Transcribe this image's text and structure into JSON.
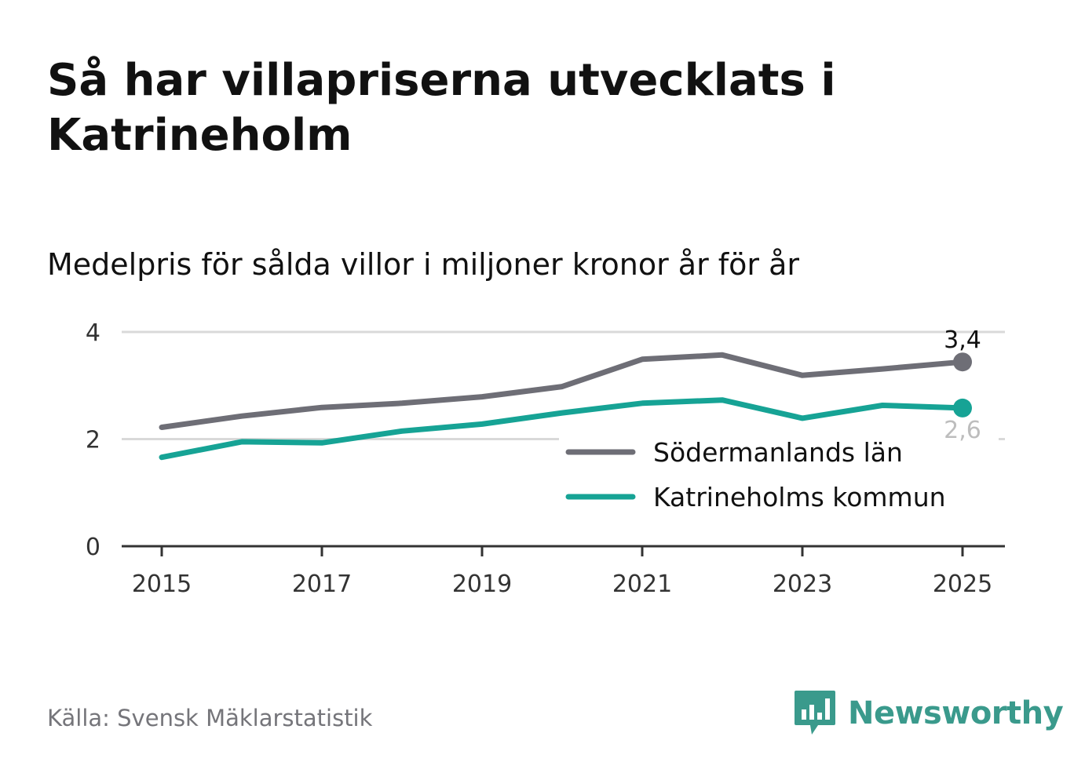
{
  "title": "Så har villapriserna utvecklats i Katrineholm",
  "subtitle": "Medelpris för sålda villor i miljoner kronor år för år",
  "source": "Källa: Svensk Mäklarstatistik",
  "brand": "Newsworthy",
  "colors": {
    "county": "#6e6e76",
    "municipality": "#16a395",
    "brand": "#3a9a8c",
    "grid": "#d9d9d9",
    "axis": "#333333"
  },
  "chart_data": {
    "type": "line",
    "title": "Så har villapriserna utvecklats i Katrineholm",
    "subtitle": "Medelpris för sålda villor i miljoner kronor år för år",
    "xlabel": "",
    "ylabel": "",
    "x": [
      2015,
      2016,
      2017,
      2018,
      2019,
      2020,
      2021,
      2022,
      2023,
      2024,
      2025
    ],
    "xticks": [
      "2015",
      "2017",
      "2019",
      "2021",
      "2023",
      "2025"
    ],
    "yticks": [
      "0",
      "2",
      "4"
    ],
    "ylim": [
      0,
      4
    ],
    "xlim": [
      2015,
      2025
    ],
    "grid": true,
    "legend_position": "bottom-right",
    "series": [
      {
        "name": "Södermanlands län",
        "color": "#6e6e76",
        "values": [
          2.22,
          2.43,
          2.59,
          2.67,
          2.79,
          2.98,
          3.49,
          3.57,
          3.19,
          3.31,
          3.44
        ],
        "end_label": "3,4"
      },
      {
        "name": "Katrineholms kommun",
        "color": "#16a395",
        "values": [
          1.66,
          1.95,
          1.93,
          2.15,
          2.28,
          2.49,
          2.67,
          2.73,
          2.39,
          2.63,
          2.58
        ],
        "end_label": "2,6"
      }
    ]
  }
}
